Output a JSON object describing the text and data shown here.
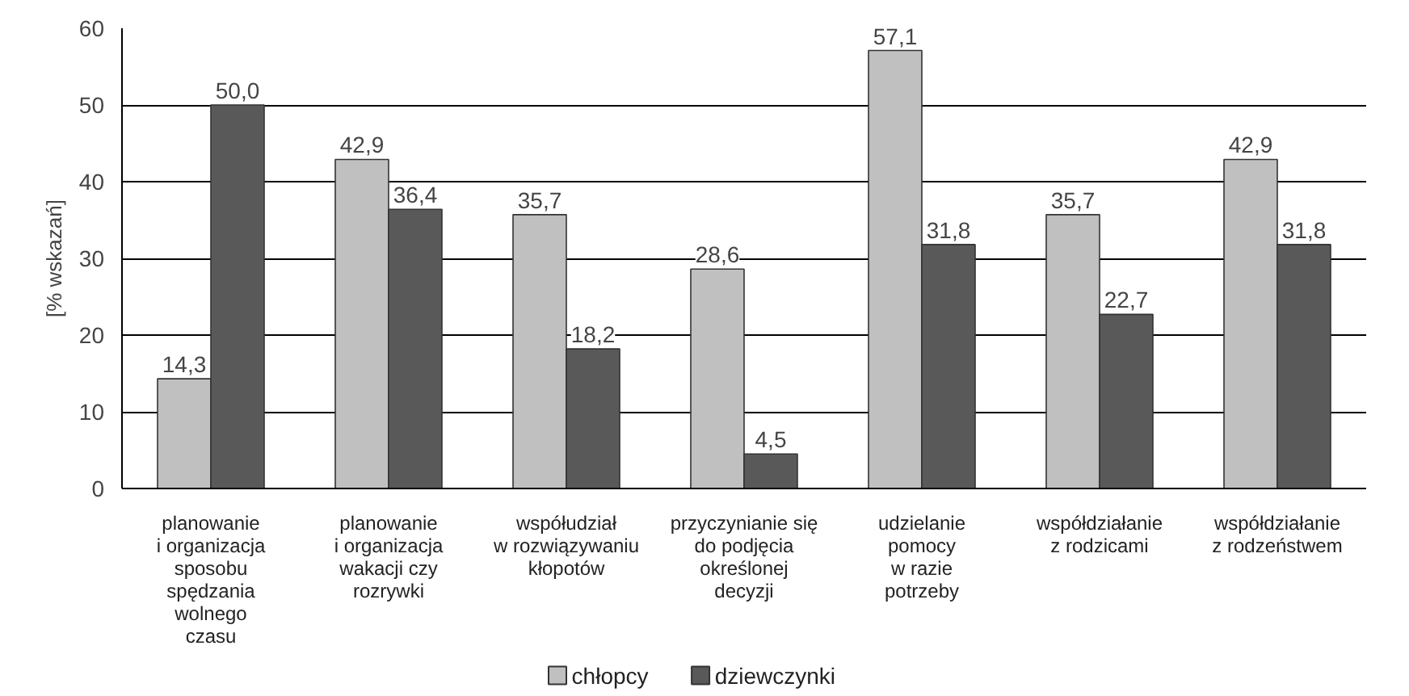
{
  "chart_data": {
    "type": "bar",
    "ylabel": "[% wskazań]",
    "categories": [
      "planowanie\ni organizacja\nsposobu\nspędzania\nwolnego\nczasu",
      "planowanie\ni organizacja\nwakacji czy\nrozrywki",
      "współudział\nw rozwiązywaniu\nkłopotów",
      "przyczynianie się\ndo podjęcia\nokreślonej\ndecyzji",
      "udzielanie\npomocy\nw razie\npotrzeby",
      "współdziałanie\nz rodzicami",
      "współdziałanie\nz rodzeństwem"
    ],
    "series": [
      {
        "name": "chłopcy",
        "color": "#c0c0c0",
        "values": [
          14.3,
          42.9,
          35.7,
          28.6,
          57.1,
          35.7,
          42.9
        ],
        "value_labels": [
          "14,3",
          "42,9",
          "35,7",
          "28,6",
          "57,1",
          "35,7",
          "42,9"
        ]
      },
      {
        "name": "dziewczynki",
        "color": "#595959",
        "values": [
          50.0,
          36.4,
          18.2,
          4.5,
          31.8,
          22.7,
          31.8
        ],
        "value_labels": [
          "50,0",
          "36,4",
          "18,2",
          "4,5",
          "31,8",
          "22,7",
          "31,8"
        ]
      }
    ],
    "ylim": [
      0,
      60
    ],
    "yticks": [
      0,
      10,
      20,
      30,
      40,
      50,
      60
    ],
    "grid": "y",
    "legend": "bottom"
  }
}
